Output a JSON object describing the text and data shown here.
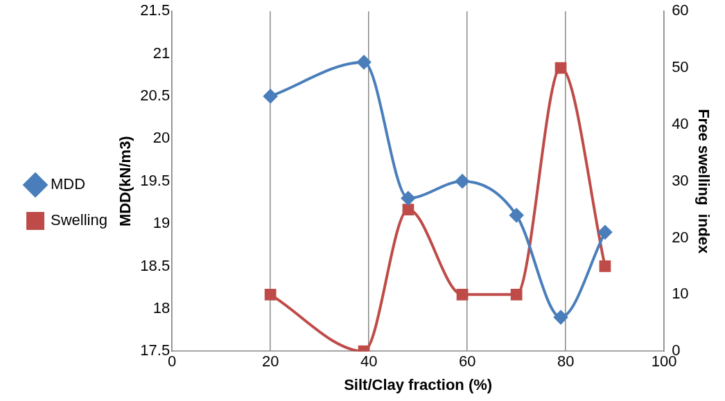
{
  "chart_data": {
    "type": "line",
    "xlabel": "Silt/Clay fraction (%)",
    "ylabel": "MDD(kN/m3)",
    "y2label": "Free swelling  index",
    "xlim": [
      0,
      100
    ],
    "xticks": [
      0,
      20,
      40,
      60,
      80,
      100
    ],
    "ylim": [
      17.5,
      21.5
    ],
    "yticks": [
      17.5,
      18,
      18.5,
      19,
      19.5,
      20,
      20.5,
      21,
      21.5
    ],
    "y2lim": [
      0,
      60
    ],
    "y2ticks": [
      0,
      10,
      20,
      30,
      40,
      50,
      60
    ],
    "grid": "x",
    "legend": "left",
    "series": [
      {
        "name": "MDD",
        "color": "#4a7ebb",
        "marker": "diamond",
        "x": [
          20,
          39,
          48,
          59,
          70,
          79,
          88
        ],
        "values": [
          20.5,
          20.9,
          19.3,
          19.5,
          19.1,
          17.9,
          18.9
        ]
      },
      {
        "name": "Swelling",
        "color": "#be4b48",
        "marker": "square",
        "axis": "y2",
        "x": [
          20,
          39,
          48,
          59,
          70,
          79,
          88
        ],
        "values": [
          10,
          0,
          25,
          10,
          10,
          50,
          15
        ]
      }
    ]
  }
}
